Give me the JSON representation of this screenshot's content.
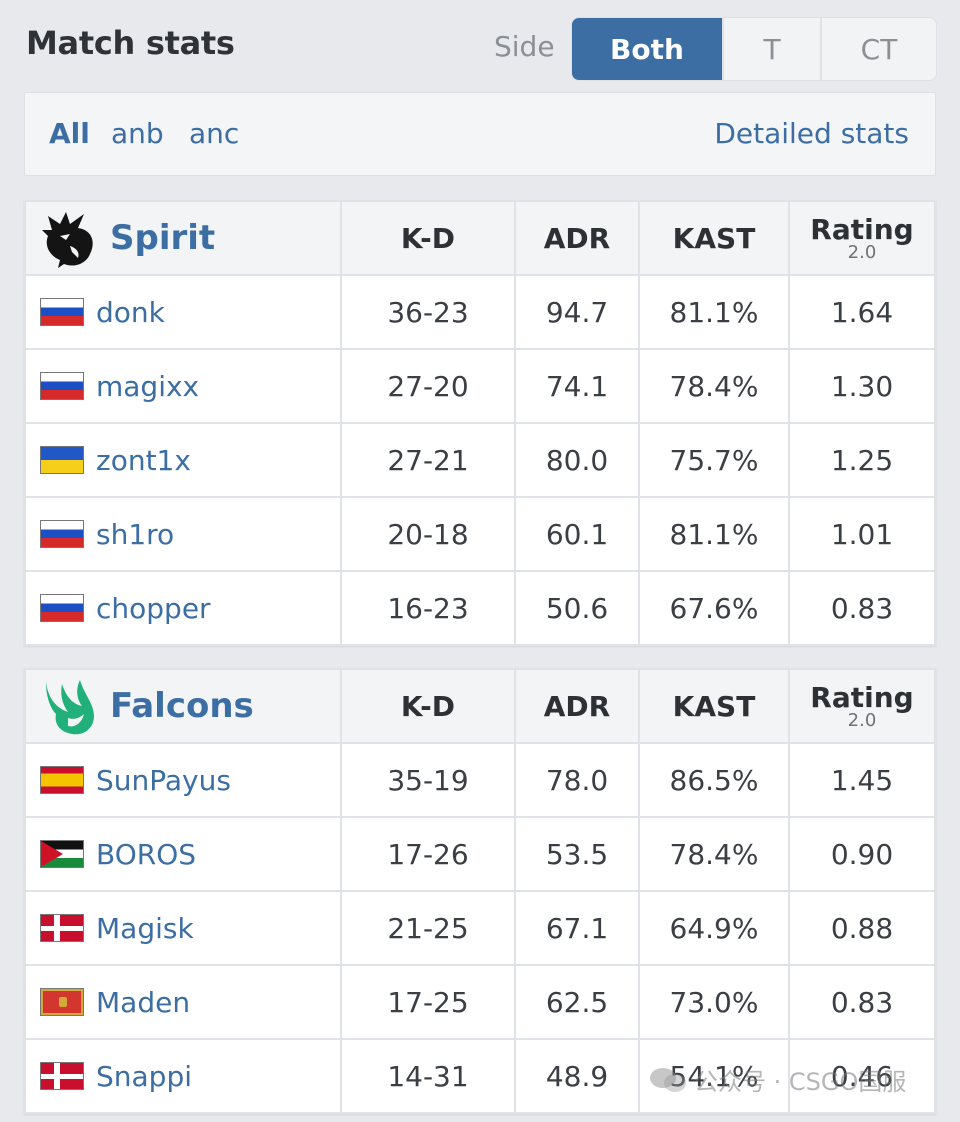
{
  "header": {
    "title": "Match stats",
    "side_label": "Side",
    "side_options": [
      {
        "label": "Both",
        "active": true
      },
      {
        "label": "T",
        "active": false
      },
      {
        "label": "CT",
        "active": false
      }
    ]
  },
  "maps": {
    "tabs": [
      {
        "label": "All",
        "active": true
      },
      {
        "label": "anb",
        "active": false
      },
      {
        "label": "anc",
        "active": false
      }
    ],
    "detailed_link": "Detailed stats"
  },
  "columns": {
    "kd": "K-D",
    "adr": "ADR",
    "kast": "KAST",
    "rating": "Rating",
    "rating_version": "2.0"
  },
  "teams": [
    {
      "name": "Spirit",
      "logo_icon": "spirit-dragon-icon",
      "players": [
        {
          "flag": "russia-flag-icon",
          "name": "donk",
          "kd": "36-23",
          "adr": "94.7",
          "kast": "81.1%",
          "rating": "1.64"
        },
        {
          "flag": "russia-flag-icon",
          "name": "magixx",
          "kd": "27-20",
          "adr": "74.1",
          "kast": "78.4%",
          "rating": "1.30"
        },
        {
          "flag": "ukraine-flag-icon",
          "name": "zont1x",
          "kd": "27-21",
          "adr": "80.0",
          "kast": "75.7%",
          "rating": "1.25"
        },
        {
          "flag": "russia-flag-icon",
          "name": "sh1ro",
          "kd": "20-18",
          "adr": "60.1",
          "kast": "81.1%",
          "rating": "1.01"
        },
        {
          "flag": "russia-flag-icon",
          "name": "chopper",
          "kd": "16-23",
          "adr": "50.6",
          "kast": "67.6%",
          "rating": "0.83"
        }
      ]
    },
    {
      "name": "Falcons",
      "logo_icon": "falcons-bird-icon",
      "players": [
        {
          "flag": "spain-flag-icon",
          "name": "SunPayus",
          "kd": "35-19",
          "adr": "78.0",
          "kast": "86.5%",
          "rating": "1.45"
        },
        {
          "flag": "jordan-flag-icon",
          "name": "BOROS",
          "kd": "17-26",
          "adr": "53.5",
          "kast": "78.4%",
          "rating": "0.90"
        },
        {
          "flag": "denmark-flag-icon",
          "name": "Magisk",
          "kd": "21-25",
          "adr": "67.1",
          "kast": "64.9%",
          "rating": "0.88"
        },
        {
          "flag": "montenegro-flag-icon",
          "name": "Maden",
          "kd": "17-25",
          "adr": "62.5",
          "kast": "73.0%",
          "rating": "0.83"
        },
        {
          "flag": "denmark-flag-icon",
          "name": "Snappi",
          "kd": "14-31",
          "adr": "48.9",
          "kast": "54.1%",
          "rating": "0.46"
        }
      ]
    }
  ],
  "watermark": "公众号 · CSGO国服",
  "colors": {
    "accent": "#3c6ea4",
    "background": "#e7e9ed",
    "header_cell": "#f2f4f6"
  }
}
